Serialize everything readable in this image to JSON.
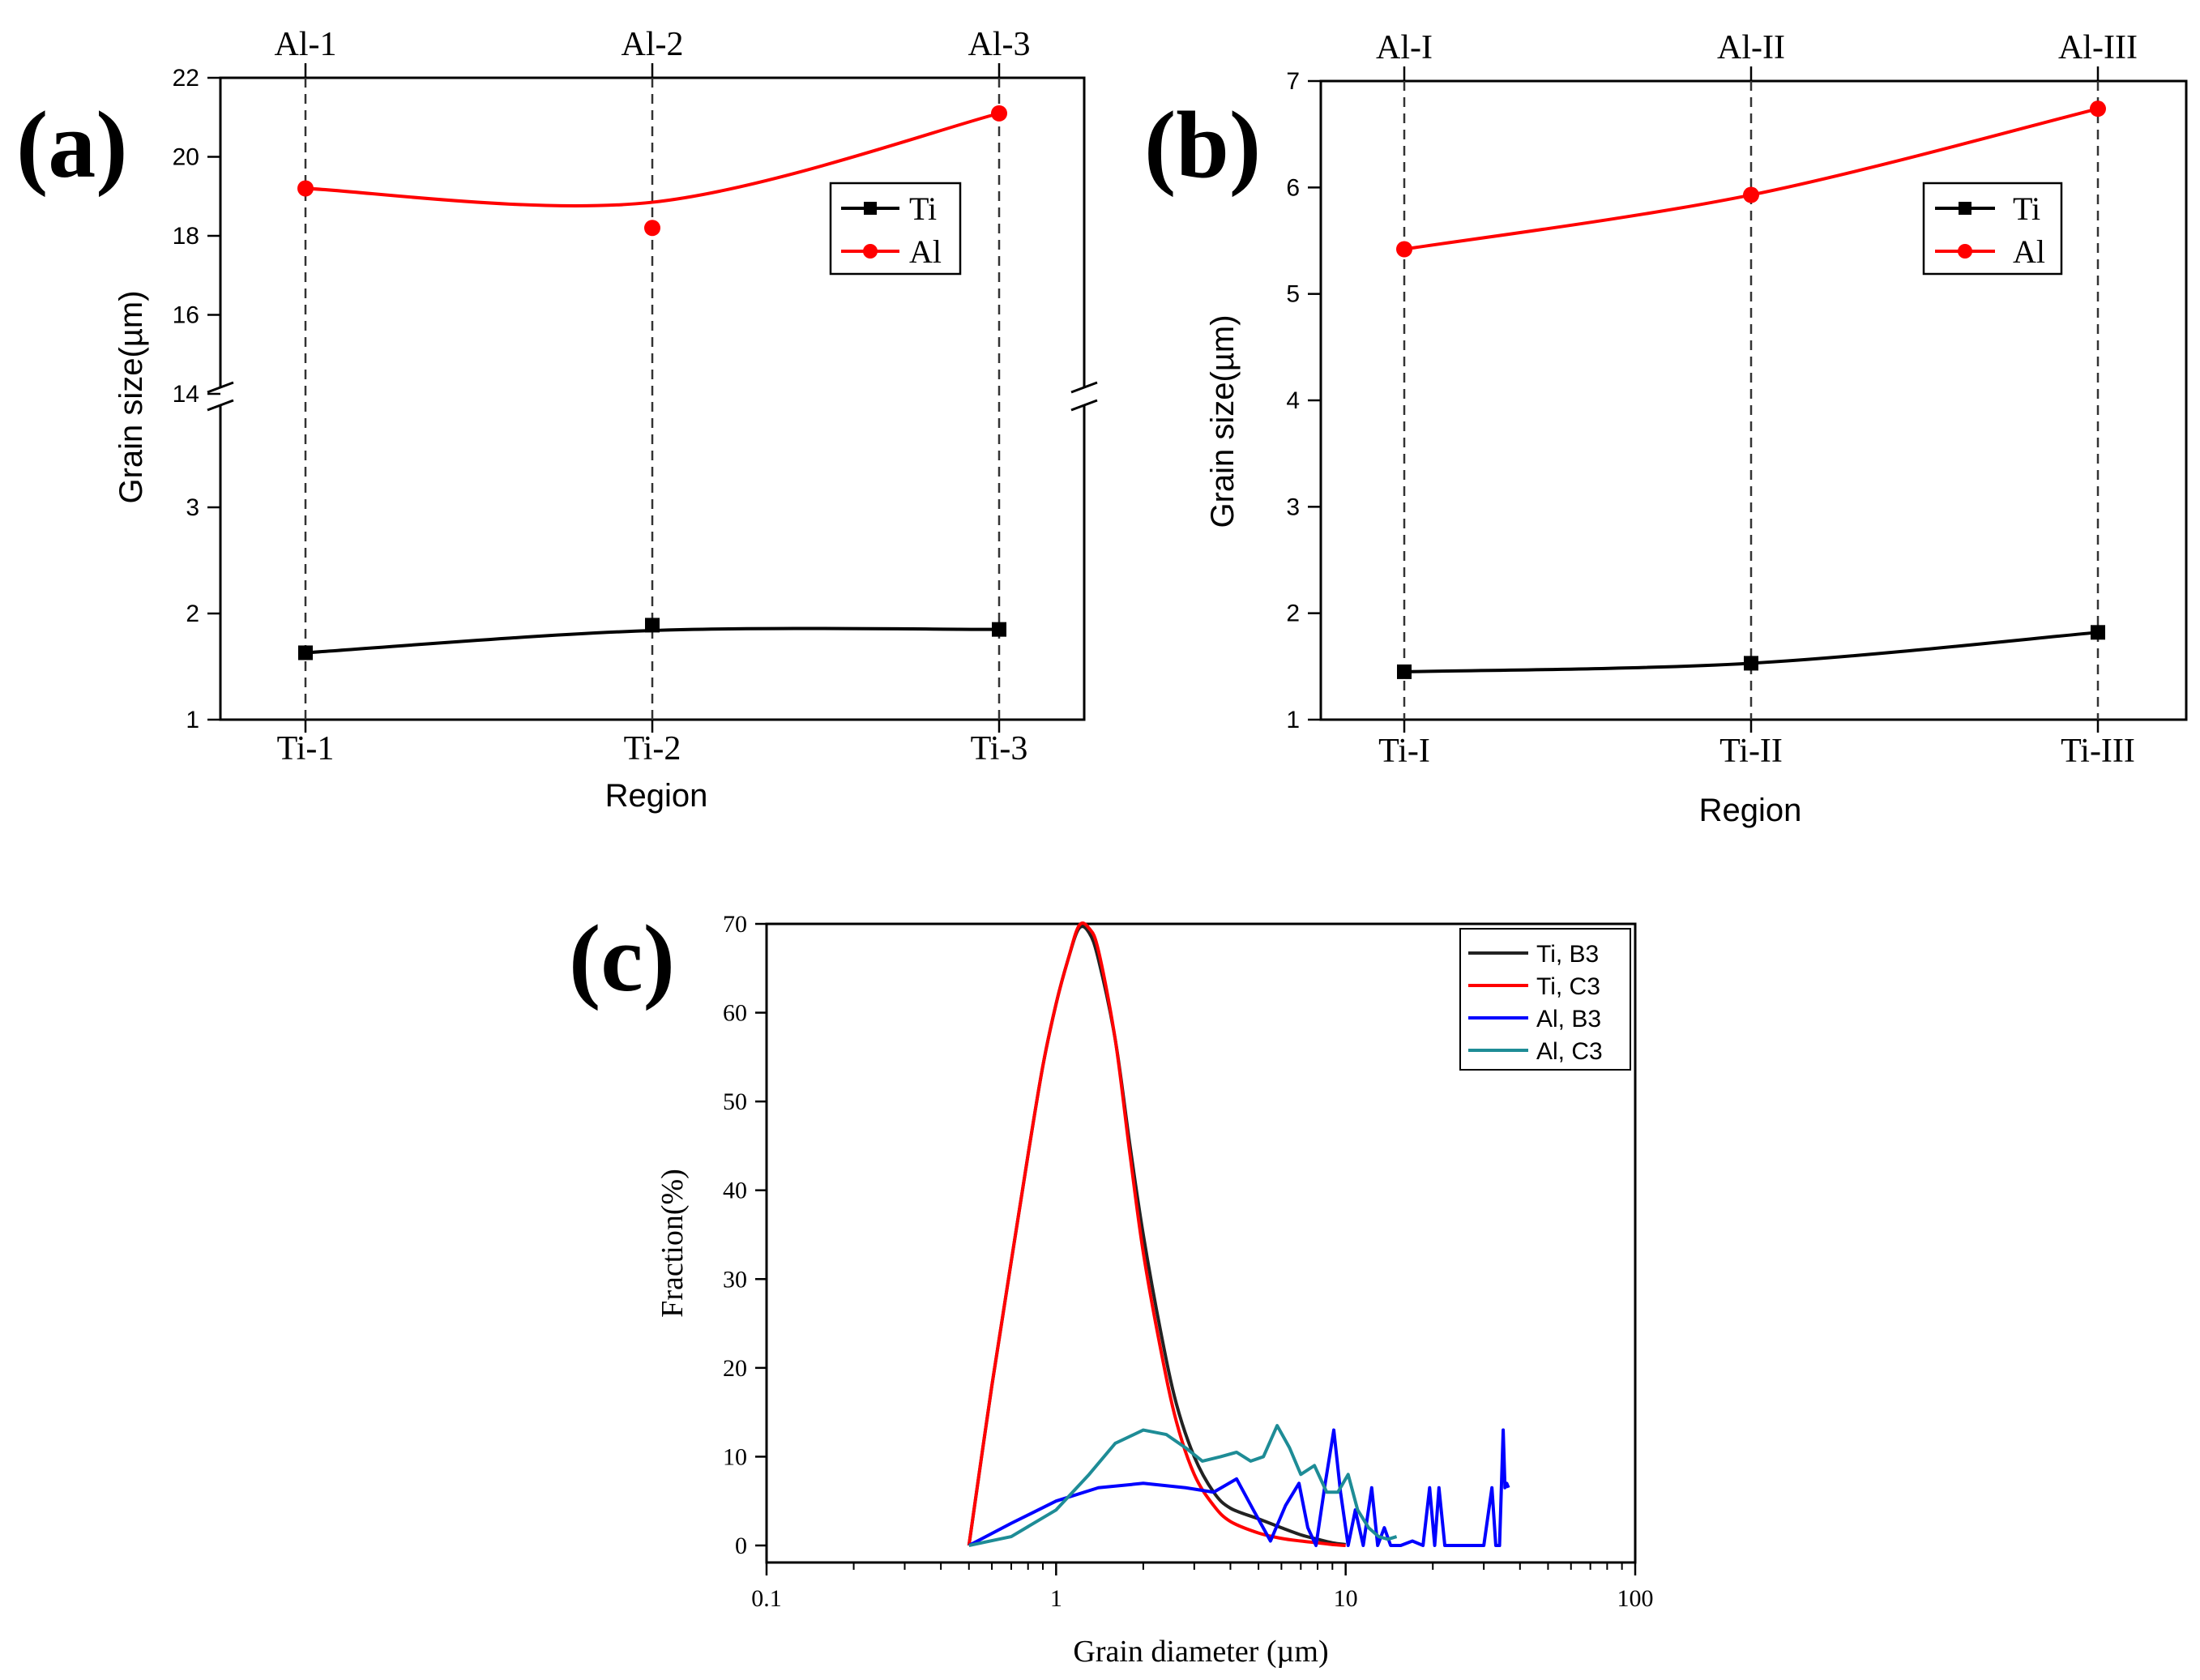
{
  "chart_data": [
    {
      "id": "a",
      "type": "line",
      "panel_label": "(a)",
      "xlabel": "Region",
      "ylabel": "Grain size(µm)",
      "categories_bottom": [
        "Ti-1",
        "Ti-2",
        "Ti-3"
      ],
      "categories_top": [
        "Al-1",
        "Al-2",
        "Al-3"
      ],
      "y_axis_break": true,
      "ylim_lower": [
        1,
        3.9
      ],
      "ylim_upper": [
        14,
        22
      ],
      "yticks_lower": [
        1,
        2,
        3
      ],
      "yticks_upper": [
        14,
        16,
        18,
        20,
        22
      ],
      "series": [
        {
          "name": "Ti",
          "color": "#000000",
          "marker": "square",
          "values": [
            1.63,
            1.89,
            1.85
          ]
        },
        {
          "name": "Al",
          "color": "#ff0000",
          "marker": "circle",
          "values": [
            19.2,
            18.2,
            21.1
          ]
        }
      ],
      "legend": [
        "Ti",
        "Al"
      ],
      "legend_position": "top-right"
    },
    {
      "id": "b",
      "type": "line",
      "panel_label": "(b)",
      "xlabel": "Region",
      "ylabel": "Grain size(µm)",
      "categories_bottom": [
        "Ti-I",
        "Ti-II",
        "Ti-III"
      ],
      "categories_top": [
        "Al-I",
        "Al-II",
        "Al-III"
      ],
      "ylim": [
        1,
        7
      ],
      "yticks": [
        1,
        2,
        3,
        4,
        5,
        6,
        7
      ],
      "series": [
        {
          "name": "Ti",
          "color": "#000000",
          "marker": "square",
          "values": [
            1.45,
            1.53,
            1.82
          ]
        },
        {
          "name": "Al",
          "color": "#ff0000",
          "marker": "circle",
          "values": [
            5.42,
            5.93,
            6.74
          ]
        }
      ],
      "legend": [
        "Ti",
        "Al"
      ],
      "legend_position": "top-right"
    },
    {
      "id": "c",
      "type": "line",
      "panel_label": "(c)",
      "xlabel": "Grain diameter (µm)",
      "ylabel": "Fraction(%)",
      "x_scale": "log",
      "xlim": [
        0.1,
        100
      ],
      "ylim": [
        -2,
        70
      ],
      "xticks": [
        0.1,
        1,
        10,
        100
      ],
      "xtick_labels": [
        "0.1",
        "1",
        "10",
        "100"
      ],
      "yticks": [
        0,
        10,
        20,
        30,
        40,
        50,
        60,
        70
      ],
      "series": [
        {
          "name": "Ti, B3",
          "color": "#222222",
          "x": [
            0.5,
            0.6,
            0.7,
            0.8,
            0.9,
            1.0,
            1.1,
            1.2,
            1.3,
            1.4,
            1.6,
            1.8,
            2.0,
            2.3,
            2.6,
            3.0,
            3.5,
            4.0,
            5,
            6,
            7,
            8,
            9,
            10
          ],
          "y": [
            0,
            18,
            32,
            44,
            54,
            61,
            66,
            69.5,
            69,
            66,
            57,
            45,
            35,
            24,
            16,
            10,
            6,
            4.2,
            3,
            2,
            1.2,
            0.7,
            0.3,
            0.1
          ]
        },
        {
          "name": "Ti, C3",
          "color": "#ff0000",
          "x": [
            0.5,
            0.6,
            0.7,
            0.8,
            0.9,
            1.0,
            1.1,
            1.2,
            1.3,
            1.4,
            1.6,
            1.8,
            2.0,
            2.3,
            2.6,
            3.0,
            3.5,
            4.0,
            5,
            6,
            7,
            8,
            9,
            10
          ],
          "y": [
            0,
            18,
            32,
            44,
            54,
            61,
            66,
            69.8,
            69.5,
            67,
            57,
            44,
            33,
            22,
            14,
            8,
            4.5,
            2.7,
            1.4,
            0.8,
            0.5,
            0.3,
            0.1,
            0
          ]
        },
        {
          "name": "Al, B3",
          "color": "#0000ff",
          "x": [
            0.5,
            0.7,
            1.0,
            1.4,
            2.0,
            2.8,
            3.5,
            4.2,
            4.8,
            5.5,
            6.2,
            6.9,
            7.4,
            7.9,
            8.5,
            9.1,
            9.6,
            10.2,
            10.8,
            11.5,
            12.3,
            12.9,
            13.6,
            14.3,
            15.5,
            17,
            18.5,
            19.5,
            20.3,
            21,
            22,
            23,
            24,
            26,
            30,
            32,
            33,
            34,
            35,
            35.5,
            36,
            36.5
          ],
          "y": [
            0,
            2.5,
            5,
            6.5,
            7,
            6.5,
            6,
            7.5,
            4,
            0.5,
            4.5,
            7,
            2,
            0,
            7,
            13,
            6,
            0,
            4,
            0,
            6.5,
            0,
            2,
            0,
            0,
            0.5,
            0,
            6.5,
            0,
            6.5,
            0,
            0,
            0,
            0,
            0,
            6.5,
            0,
            0,
            13,
            6.5,
            7,
            6.5
          ]
        },
        {
          "name": "Al, C3",
          "color": "#1e8c96",
          "x": [
            0.5,
            0.7,
            1.0,
            1.3,
            1.6,
            2.0,
            2.4,
            2.8,
            3.2,
            3.7,
            4.2,
            4.7,
            5.2,
            5.8,
            6.4,
            7.0,
            7.8,
            8.6,
            9.4,
            10.2,
            11,
            12,
            13,
            14,
            15
          ],
          "y": [
            0,
            1,
            4,
            8,
            11.5,
            13,
            12.5,
            11,
            9.5,
            10,
            10.5,
            9.5,
            10,
            13.5,
            11,
            8,
            9,
            6,
            6,
            8,
            4,
            2,
            1,
            0.7,
            1
          ]
        }
      ],
      "legend": [
        "Ti, B3",
        "Ti, C3",
        "Al, B3",
        "Al, C3"
      ],
      "legend_position": "top-right"
    }
  ]
}
